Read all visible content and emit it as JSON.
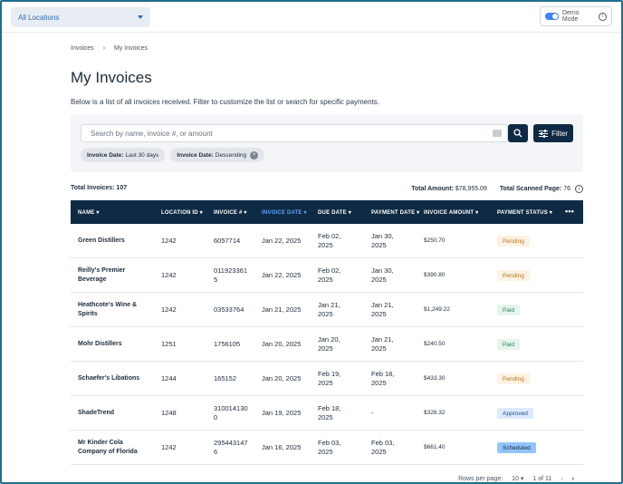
{
  "header": {
    "location_select": "All Locations",
    "demo_mode_label": "Demo Mode"
  },
  "breadcrumb": [
    "Invoices",
    "My Invoices"
  ],
  "page": {
    "title": "My Invoices",
    "description": "Below is a list of all invoices received. Filter to customize the list or search for specific payments."
  },
  "search": {
    "placeholder": "Search by name, invoice #, or amount",
    "filter_label": "Filter",
    "chips": [
      {
        "key": "Invoice Date:",
        "value": "Last 30 days",
        "removable": false
      },
      {
        "key": "Invoice Date:",
        "value": "Descending",
        "removable": true
      }
    ]
  },
  "summary": {
    "total_invoices": "Total Invoices: 107",
    "total_amount_label": "Total Amount:",
    "total_amount": "$78,955.09",
    "total_scanned_label": "Total Scanned Page:",
    "total_scanned": "76"
  },
  "table": {
    "columns": [
      "NAME",
      "LOCATION ID",
      "INVOICE #",
      "INVOICE DATE",
      "DUE DATE",
      "PAYMENT DATE",
      "INVOICE AMOUNT",
      "PAYMENT STATUS"
    ],
    "active_column": "INVOICE DATE",
    "rows": [
      {
        "name": "Green Distillers",
        "location": "1242",
        "invoice": "6057714",
        "invoice_date": "Jan 22, 2025",
        "due_date": "Feb 02, 2025",
        "payment_date": "Jan 30, 2025",
        "amount": "$250.70",
        "status": "Pending"
      },
      {
        "name": "Reilly's Premier Beverage",
        "location": "1242",
        "invoice": "0119233615",
        "invoice_date": "Jan 22, 2025",
        "due_date": "Feb 02, 2025",
        "payment_date": "Jan 30, 2025",
        "amount": "$390.80",
        "status": "Pending"
      },
      {
        "name": "Heathcote's Wine & Spirits",
        "location": "1242",
        "invoice": "03533764",
        "invoice_date": "Jan 21, 2025",
        "due_date": "Jan 21, 2025",
        "payment_date": "Jan 21, 2025",
        "amount": "$1,249.22",
        "status": "Paid"
      },
      {
        "name": "Mohr Distillers",
        "location": "1251",
        "invoice": "1756105",
        "invoice_date": "Jan 20, 2025",
        "due_date": "Jan 20, 2025",
        "payment_date": "Jan 21, 2025",
        "amount": "$240.50",
        "status": "Paid"
      },
      {
        "name": "Schaefer's Libations",
        "location": "1244",
        "invoice": "165152",
        "invoice_date": "Jan 20, 2025",
        "due_date": "Feb 19, 2025",
        "payment_date": "Feb 18, 2025",
        "amount": "$433.30",
        "status": "Pending"
      },
      {
        "name": "ShadeTrend",
        "location": "1248",
        "invoice": "3100141300",
        "invoice_date": "Jan 19, 2025",
        "due_date": "Feb 18, 2025",
        "payment_date": "-",
        "amount": "$326.32",
        "status": "Approved"
      },
      {
        "name": "Mr Kinder Cola Company of Florida",
        "location": "1242",
        "invoice": "2954431476",
        "invoice_date": "Jan 16, 2025",
        "due_date": "Feb 03, 2025",
        "payment_date": "Feb 03, 2025",
        "amount": "$661.40",
        "status": "Scheduled"
      }
    ]
  },
  "pager": {
    "rows_per_page_label": "Rows per page:",
    "rows_per_page": "10",
    "page_info": "1 of 11"
  },
  "colors": {
    "navy": "#0f2a44",
    "accent_blue": "#2b6cb0",
    "frame": "#1f6f8b"
  }
}
